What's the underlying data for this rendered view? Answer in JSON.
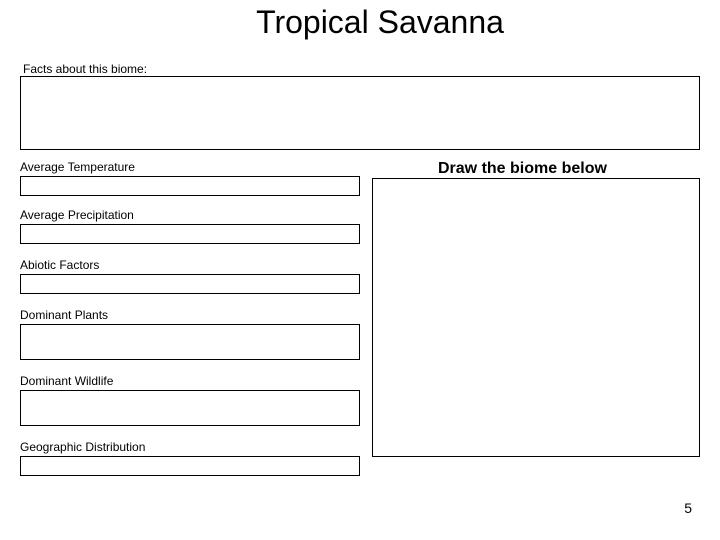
{
  "title": "Tropical Savanna",
  "facts_label": "Facts about this biome:",
  "fields": {
    "avg_temp": {
      "label": "Average Temperature"
    },
    "avg_precip": {
      "label": "Average Precipitation"
    },
    "abiotic": {
      "label": "Abiotic Factors"
    },
    "plants": {
      "label": "Dominant Plants"
    },
    "wildlife": {
      "label": "Dominant Wildlife"
    },
    "geo": {
      "label": "Geographic Distribution"
    }
  },
  "draw_label": "Draw the biome below",
  "page_number": "5",
  "colors": {
    "background": "#ffffff",
    "border": "#000000",
    "text": "#000000"
  }
}
